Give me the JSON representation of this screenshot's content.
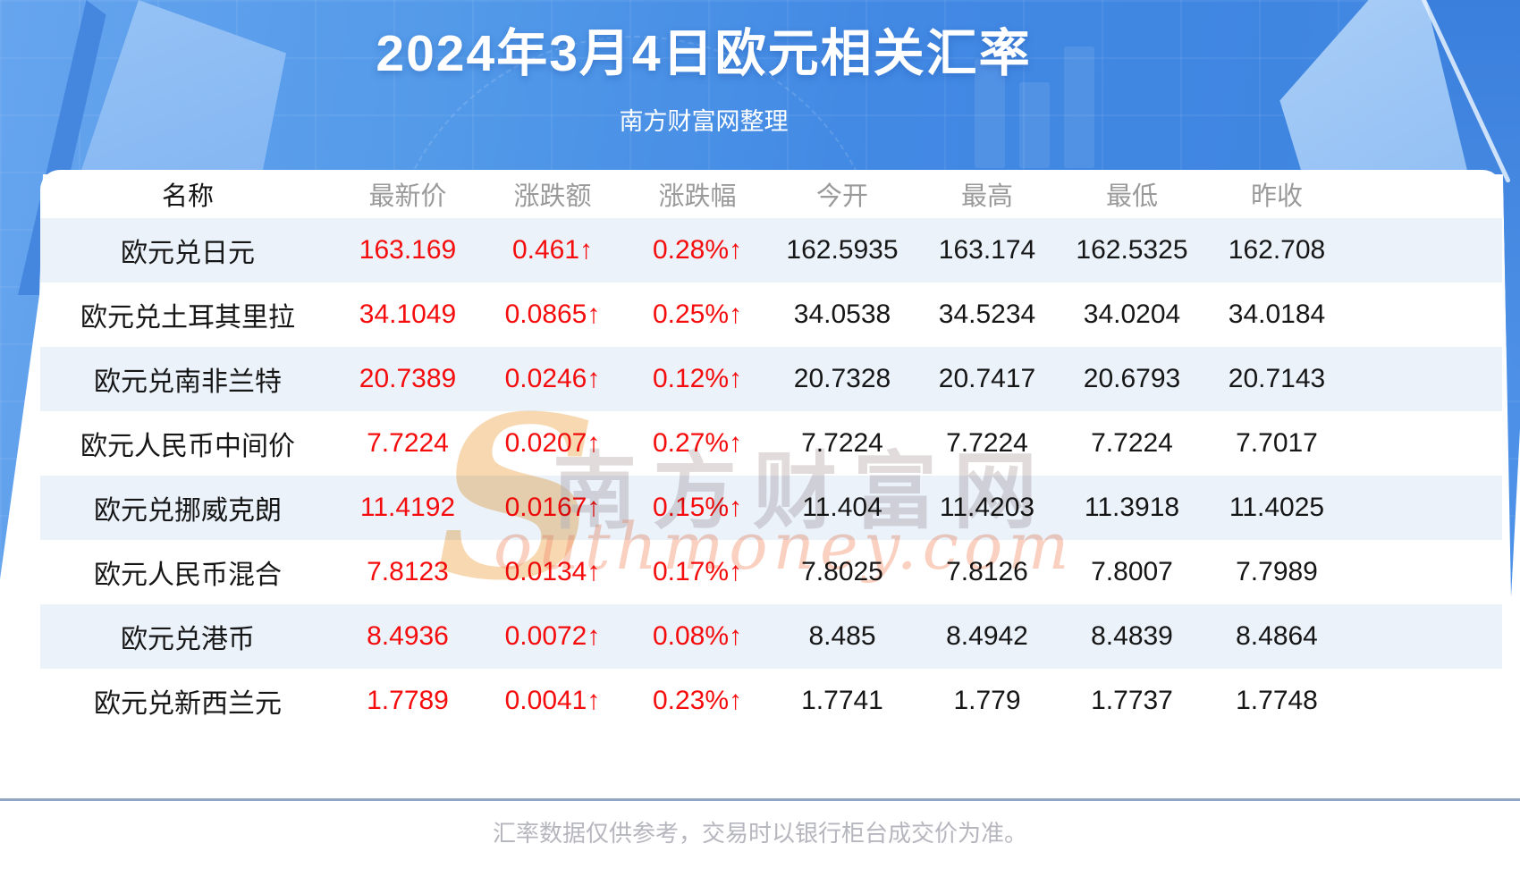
{
  "header": {
    "title": "2024年3月4日欧元相关汇率",
    "subtitle": "南方财富网整理"
  },
  "watermark": {
    "initial": "S",
    "cn": "南方财富网",
    "en": "outhmoney.com"
  },
  "table": {
    "columns": [
      "名称",
      "最新价",
      "涨跌额",
      "涨跌幅",
      "今开",
      "最高",
      "最低",
      "昨收"
    ],
    "rows": [
      {
        "name": "欧元兑日元",
        "latest": "163.169",
        "change": "0.461↑",
        "change_pct": "0.28%↑",
        "open": "162.5935",
        "high": "163.174",
        "low": "162.5325",
        "prev_close": "162.708"
      },
      {
        "name": "欧元兑土耳其里拉",
        "latest": "34.1049",
        "change": "0.0865↑",
        "change_pct": "0.25%↑",
        "open": "34.0538",
        "high": "34.5234",
        "low": "34.0204",
        "prev_close": "34.0184"
      },
      {
        "name": "欧元兑南非兰特",
        "latest": "20.7389",
        "change": "0.0246↑",
        "change_pct": "0.12%↑",
        "open": "20.7328",
        "high": "20.7417",
        "low": "20.6793",
        "prev_close": "20.7143"
      },
      {
        "name": "欧元人民币中间价",
        "latest": "7.7224",
        "change": "0.0207↑",
        "change_pct": "0.27%↑",
        "open": "7.7224",
        "high": "7.7224",
        "low": "7.7224",
        "prev_close": "7.7017"
      },
      {
        "name": "欧元兑挪威克朗",
        "latest": "11.4192",
        "change": "0.0167↑",
        "change_pct": "0.15%↑",
        "open": "11.404",
        "high": "11.4203",
        "low": "11.3918",
        "prev_close": "11.4025"
      },
      {
        "name": "欧元人民币混合",
        "latest": "7.8123",
        "change": "0.0134↑",
        "change_pct": "0.17%↑",
        "open": "7.8025",
        "high": "7.8126",
        "low": "7.8007",
        "prev_close": "7.7989"
      },
      {
        "name": "欧元兑港币",
        "latest": "8.4936",
        "change": "0.0072↑",
        "change_pct": "0.08%↑",
        "open": "8.485",
        "high": "8.4942",
        "low": "8.4839",
        "prev_close": "8.4864"
      },
      {
        "name": "欧元兑新西兰元",
        "latest": "1.7789",
        "change": "0.0041↑",
        "change_pct": "0.23%↑",
        "open": "1.7741",
        "high": "1.779",
        "low": "1.7737",
        "prev_close": "1.7748"
      }
    ]
  },
  "footer": {
    "note": "汇率数据仅供参考，交易时以银行柜台成交价为准。"
  },
  "colors": {
    "banner_blue": "#4289e4",
    "banner_blue_light": "#9cc6f5",
    "up_red": "#f50c0c",
    "stripe_blue": "#ebf2fa",
    "header_text_gray": "#9a9a9a",
    "body_text": "#161616",
    "divider_gray_blue": "#8fa5c2",
    "footer_text_gray": "#b6b6be",
    "watermark_orange": "#f6cf9d",
    "watermark_salmon": "#f39676"
  }
}
